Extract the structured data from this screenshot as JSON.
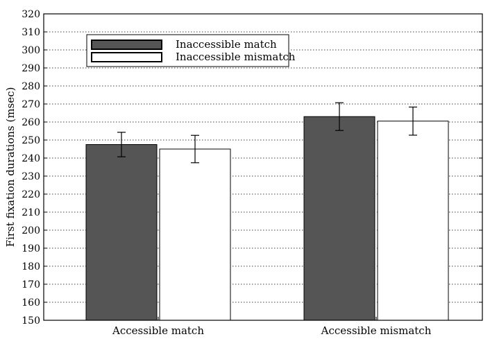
{
  "chart_data": {
    "type": "bar",
    "title": "",
    "xlabel": "",
    "ylabel": "First fixation durations (msec)",
    "ylim": [
      150,
      320
    ],
    "ytick_step": 10,
    "grid": true,
    "legend_position": "top-left",
    "categories": [
      "Accessible match",
      "Accessible mismatch"
    ],
    "series": [
      {
        "name": "Inaccessible match",
        "color": "#555555",
        "values": [
          247.5,
          263
        ],
        "error": [
          6.8,
          7.7
        ]
      },
      {
        "name": "Inaccessible mismatch",
        "color": "#ffffff",
        "values": [
          245,
          260.5
        ],
        "error": [
          7.6,
          7.8
        ]
      }
    ]
  }
}
